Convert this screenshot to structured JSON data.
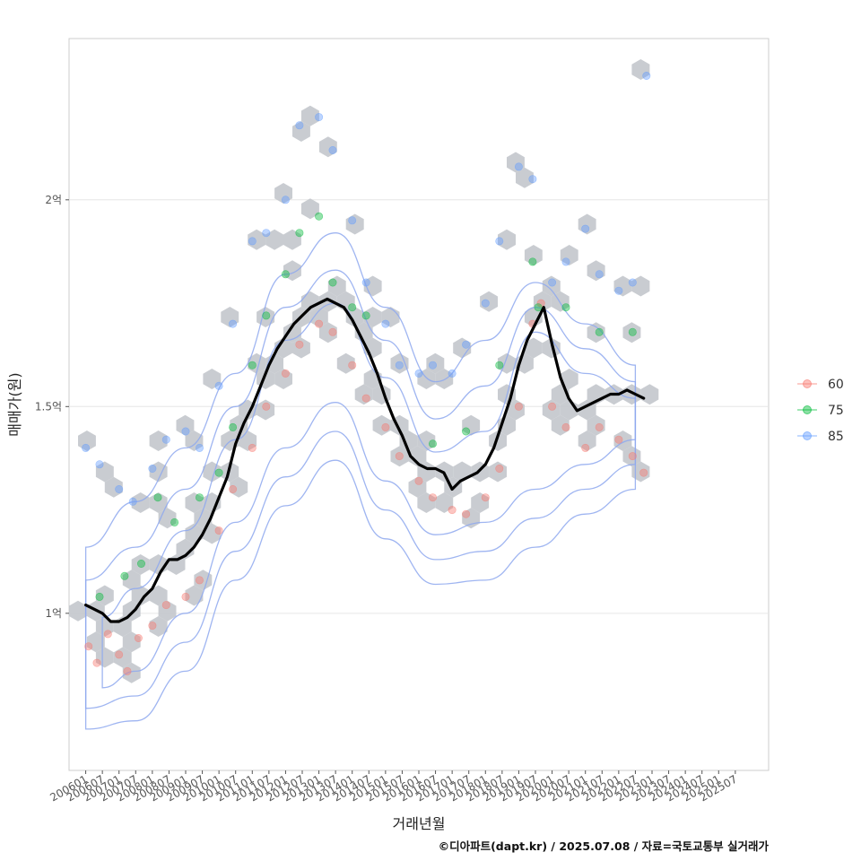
{
  "chart_data": {
    "type": "scatter",
    "title": "",
    "xlabel": "거래년월",
    "ylabel": "매매가(원)",
    "caption": "©디아파트(dapt.kr) / 2025.07.08 / 자료=국토교통부 실거래가",
    "x_ticks": [
      "200601",
      "200607",
      "200701",
      "200707",
      "200801",
      "200807",
      "200901",
      "200907",
      "201001",
      "201007",
      "201101",
      "201107",
      "201201",
      "201207",
      "201301",
      "201307",
      "201401",
      "201407",
      "201501",
      "201507",
      "201601",
      "201607",
      "201701",
      "201707",
      "201801",
      "201807",
      "201901",
      "201907",
      "202001",
      "202007",
      "202101",
      "202107",
      "202201",
      "202207",
      "202301",
      "202307",
      "202401",
      "202407",
      "202501",
      "202507"
    ],
    "y_ticks": [
      {
        "value": 1.0,
        "label": "1억"
      },
      {
        "value": 1.5,
        "label": "1.5억"
      },
      {
        "value": 2.0,
        "label": "2억"
      }
    ],
    "y_unit": "억원",
    "xlim": [
      "2005-07",
      "2026-07"
    ],
    "ylim": [
      0.62,
      2.39
    ],
    "grid": "horizontal",
    "legend_position": "right",
    "legend": [
      {
        "name": "60",
        "color": "#f8766d"
      },
      {
        "name": "75",
        "color": "#00ba38"
      },
      {
        "name": "85",
        "color": "#619cff"
      }
    ],
    "colors": {
      "hexbin": "#c3c7cc",
      "density_contour": "#8ea8ef",
      "trend_line": "#000000"
    },
    "trend_line": {
      "name": "이동평균",
      "points": [
        [
          "2006-01",
          1.02
        ],
        [
          "2006-04",
          1.01
        ],
        [
          "2006-07",
          1.0
        ],
        [
          "2006-10",
          0.98
        ],
        [
          "2007-01",
          0.98
        ],
        [
          "2007-04",
          0.99
        ],
        [
          "2007-07",
          1.01
        ],
        [
          "2007-10",
          1.04
        ],
        [
          "2008-01",
          1.06
        ],
        [
          "2008-04",
          1.1
        ],
        [
          "2008-07",
          1.13
        ],
        [
          "2008-10",
          1.13
        ],
        [
          "2009-01",
          1.14
        ],
        [
          "2009-04",
          1.16
        ],
        [
          "2009-07",
          1.19
        ],
        [
          "2009-10",
          1.23
        ],
        [
          "2010-01",
          1.28
        ],
        [
          "2010-04",
          1.33
        ],
        [
          "2010-07",
          1.41
        ],
        [
          "2010-10",
          1.46
        ],
        [
          "2011-01",
          1.5
        ],
        [
          "2011-04",
          1.55
        ],
        [
          "2011-07",
          1.6
        ],
        [
          "2011-10",
          1.64
        ],
        [
          "2012-01",
          1.67
        ],
        [
          "2012-04",
          1.7
        ],
        [
          "2012-07",
          1.72
        ],
        [
          "2012-10",
          1.74
        ],
        [
          "2013-01",
          1.75
        ],
        [
          "2013-04",
          1.76
        ],
        [
          "2013-07",
          1.75
        ],
        [
          "2013-10",
          1.74
        ],
        [
          "2014-01",
          1.71
        ],
        [
          "2014-04",
          1.67
        ],
        [
          "2014-07",
          1.63
        ],
        [
          "2014-10",
          1.58
        ],
        [
          "2015-01",
          1.52
        ],
        [
          "2015-04",
          1.47
        ],
        [
          "2015-07",
          1.43
        ],
        [
          "2015-10",
          1.38
        ],
        [
          "2016-01",
          1.36
        ],
        [
          "2016-04",
          1.35
        ],
        [
          "2016-07",
          1.35
        ],
        [
          "2016-10",
          1.34
        ],
        [
          "2017-01",
          1.3
        ],
        [
          "2017-04",
          1.32
        ],
        [
          "2017-07",
          1.33
        ],
        [
          "2017-10",
          1.34
        ],
        [
          "2018-01",
          1.36
        ],
        [
          "2018-04",
          1.4
        ],
        [
          "2018-07",
          1.46
        ],
        [
          "2018-10",
          1.52
        ],
        [
          "2019-01",
          1.6
        ],
        [
          "2019-04",
          1.66
        ],
        [
          "2019-07",
          1.7
        ],
        [
          "2019-10",
          1.74
        ],
        [
          "2020-01",
          1.65
        ],
        [
          "2020-04",
          1.57
        ],
        [
          "2020-07",
          1.52
        ],
        [
          "2020-10",
          1.49
        ],
        [
          "2021-01",
          1.5
        ],
        [
          "2021-04",
          1.51
        ],
        [
          "2021-07",
          1.52
        ],
        [
          "2021-10",
          1.53
        ],
        [
          "2022-01",
          1.53
        ],
        [
          "2022-04",
          1.54
        ],
        [
          "2022-07",
          1.53
        ],
        [
          "2022-10",
          1.52
        ]
      ]
    },
    "density_bands": [
      {
        "level": 1,
        "upper": [
          [
            "2006-01",
            1.16
          ],
          [
            "2007-07",
            1.27
          ],
          [
            "2009-01",
            1.4
          ],
          [
            "2010-07",
            1.58
          ],
          [
            "2012-01",
            1.82
          ],
          [
            "2013-07",
            1.92
          ],
          [
            "2015-01",
            1.74
          ],
          [
            "2016-07",
            1.56
          ],
          [
            "2018-01",
            1.66
          ],
          [
            "2019-07",
            1.8
          ],
          [
            "2021-01",
            1.7
          ],
          [
            "2022-07",
            1.6
          ]
        ],
        "lower": [
          [
            "2006-01",
            0.72
          ],
          [
            "2007-07",
            0.74
          ],
          [
            "2009-01",
            0.86
          ],
          [
            "2010-07",
            1.08
          ],
          [
            "2012-01",
            1.26
          ],
          [
            "2013-07",
            1.37
          ],
          [
            "2015-01",
            1.18
          ],
          [
            "2016-07",
            1.07
          ],
          [
            "2018-01",
            1.08
          ],
          [
            "2019-07",
            1.16
          ],
          [
            "2021-01",
            1.24
          ],
          [
            "2022-07",
            1.3
          ]
        ]
      },
      {
        "level": 2,
        "upper": [
          [
            "2006-01",
            1.08
          ],
          [
            "2007-07",
            1.16
          ],
          [
            "2009-01",
            1.3
          ],
          [
            "2010-07",
            1.5
          ],
          [
            "2012-01",
            1.74
          ],
          [
            "2013-07",
            1.83
          ],
          [
            "2015-01",
            1.66
          ],
          [
            "2016-07",
            1.47
          ],
          [
            "2018-01",
            1.55
          ],
          [
            "2019-07",
            1.74
          ],
          [
            "2021-01",
            1.64
          ],
          [
            "2022-07",
            1.56
          ]
        ],
        "lower": [
          [
            "2006-01",
            0.77
          ],
          [
            "2007-07",
            0.8
          ],
          [
            "2009-01",
            0.93
          ],
          [
            "2010-07",
            1.15
          ],
          [
            "2012-01",
            1.33
          ],
          [
            "2013-07",
            1.44
          ],
          [
            "2015-01",
            1.25
          ],
          [
            "2016-07",
            1.13
          ],
          [
            "2018-01",
            1.15
          ],
          [
            "2019-07",
            1.23
          ],
          [
            "2021-01",
            1.3
          ],
          [
            "2022-07",
            1.36
          ]
        ]
      },
      {
        "level": 3,
        "upper": [
          [
            "2006-07",
            0.99
          ],
          [
            "2007-07",
            1.06
          ],
          [
            "2009-01",
            1.2
          ],
          [
            "2010-07",
            1.42
          ],
          [
            "2012-01",
            1.66
          ],
          [
            "2013-07",
            1.75
          ],
          [
            "2015-01",
            1.57
          ],
          [
            "2016-07",
            1.39
          ],
          [
            "2018-01",
            1.44
          ],
          [
            "2019-07",
            1.68
          ],
          [
            "2021-01",
            1.58
          ],
          [
            "2022-07",
            1.52
          ]
        ],
        "lower": [
          [
            "2006-07",
            0.82
          ],
          [
            "2007-07",
            0.86
          ],
          [
            "2009-01",
            1.0
          ],
          [
            "2010-07",
            1.22
          ],
          [
            "2012-01",
            1.4
          ],
          [
            "2013-07",
            1.51
          ],
          [
            "2015-01",
            1.32
          ],
          [
            "2016-07",
            1.19
          ],
          [
            "2018-01",
            1.22
          ],
          [
            "2019-07",
            1.3
          ],
          [
            "2021-01",
            1.36
          ],
          [
            "2022-07",
            1.42
          ]
        ]
      }
    ],
    "series": [
      {
        "name": "60",
        "points": [
          [
            "2006-02",
            0.92
          ],
          [
            "2006-05",
            0.88
          ],
          [
            "2006-09",
            0.95
          ],
          [
            "2007-01",
            0.9
          ],
          [
            "2007-04",
            0.86
          ],
          [
            "2007-08",
            0.94
          ],
          [
            "2008-01",
            0.97
          ],
          [
            "2008-06",
            1.02
          ],
          [
            "2009-01",
            1.04
          ],
          [
            "2009-06",
            1.08
          ],
          [
            "2010-01",
            1.2
          ],
          [
            "2010-06",
            1.3
          ],
          [
            "2011-01",
            1.4
          ],
          [
            "2011-06",
            1.5
          ],
          [
            "2012-01",
            1.58
          ],
          [
            "2012-06",
            1.65
          ],
          [
            "2013-01",
            1.7
          ],
          [
            "2013-06",
            1.68
          ],
          [
            "2014-01",
            1.6
          ],
          [
            "2014-06",
            1.52
          ],
          [
            "2015-01",
            1.45
          ],
          [
            "2015-06",
            1.38
          ],
          [
            "2016-01",
            1.32
          ],
          [
            "2016-06",
            1.28
          ],
          [
            "2017-01",
            1.25
          ],
          [
            "2017-06",
            1.24
          ],
          [
            "2018-01",
            1.28
          ],
          [
            "2018-06",
            1.35
          ],
          [
            "2019-01",
            1.5
          ],
          [
            "2019-06",
            1.7
          ],
          [
            "2019-09",
            1.75
          ],
          [
            "2020-01",
            1.5
          ],
          [
            "2020-06",
            1.45
          ],
          [
            "2021-01",
            1.4
          ],
          [
            "2021-06",
            1.45
          ],
          [
            "2022-01",
            1.42
          ],
          [
            "2022-06",
            1.38
          ],
          [
            "2022-10",
            1.34
          ]
        ]
      },
      {
        "name": "75",
        "points": [
          [
            "2006-06",
            1.04
          ],
          [
            "2007-03",
            1.09
          ],
          [
            "2007-09",
            1.12
          ],
          [
            "2008-03",
            1.28
          ],
          [
            "2008-09",
            1.22
          ],
          [
            "2009-06",
            1.28
          ],
          [
            "2010-01",
            1.34
          ],
          [
            "2010-06",
            1.45
          ],
          [
            "2011-01",
            1.6
          ],
          [
            "2011-06",
            1.72
          ],
          [
            "2012-01",
            1.82
          ],
          [
            "2012-06",
            1.92
          ],
          [
            "2013-01",
            1.96
          ],
          [
            "2013-06",
            1.8
          ],
          [
            "2014-01",
            1.74
          ],
          [
            "2014-06",
            1.72
          ],
          [
            "2016-06",
            1.41
          ],
          [
            "2017-06",
            1.44
          ],
          [
            "2018-06",
            1.6
          ],
          [
            "2019-06",
            1.85
          ],
          [
            "2019-08",
            1.74
          ],
          [
            "2020-06",
            1.74
          ],
          [
            "2021-06",
            1.68
          ],
          [
            "2022-06",
            1.68
          ]
        ]
      },
      {
        "name": "85",
        "points": [
          [
            "2006-01",
            1.4
          ],
          [
            "2006-06",
            1.36
          ],
          [
            "2007-01",
            1.3
          ],
          [
            "2007-06",
            1.27
          ],
          [
            "2008-01",
            1.35
          ],
          [
            "2008-06",
            1.42
          ],
          [
            "2009-01",
            1.44
          ],
          [
            "2009-06",
            1.4
          ],
          [
            "2010-01",
            1.55
          ],
          [
            "2010-06",
            1.7
          ],
          [
            "2011-01",
            1.9
          ],
          [
            "2011-06",
            1.92
          ],
          [
            "2012-01",
            2.0
          ],
          [
            "2012-06",
            2.18
          ],
          [
            "2013-01",
            2.2
          ],
          [
            "2013-06",
            2.12
          ],
          [
            "2014-01",
            1.95
          ],
          [
            "2014-06",
            1.8
          ],
          [
            "2015-01",
            1.7
          ],
          [
            "2015-06",
            1.6
          ],
          [
            "2016-01",
            1.58
          ],
          [
            "2016-06",
            1.6
          ],
          [
            "2017-01",
            1.58
          ],
          [
            "2017-06",
            1.65
          ],
          [
            "2018-01",
            1.75
          ],
          [
            "2018-06",
            1.9
          ],
          [
            "2019-01",
            2.08
          ],
          [
            "2019-06",
            2.05
          ],
          [
            "2020-01",
            1.8
          ],
          [
            "2020-06",
            1.85
          ],
          [
            "2021-01",
            1.93
          ],
          [
            "2021-06",
            1.82
          ],
          [
            "2022-01",
            1.78
          ],
          [
            "2022-06",
            1.8
          ],
          [
            "2022-11",
            2.3
          ]
        ]
      }
    ]
  }
}
